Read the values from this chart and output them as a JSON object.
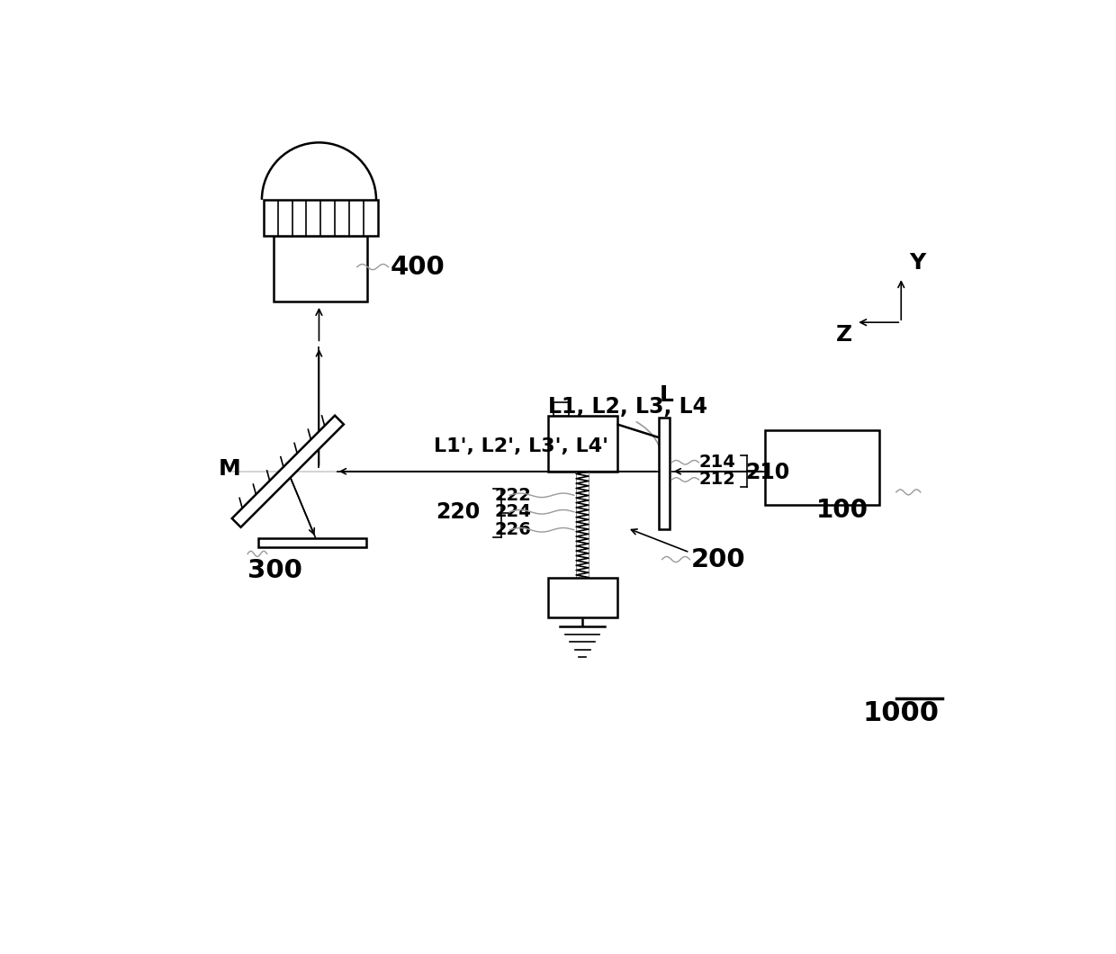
{
  "bg_color": "#ffffff",
  "lc": "#000000",
  "llc": "#999999",
  "label_400": "400",
  "label_100": "100",
  "label_200": "200",
  "label_210": "210",
  "label_212": "212",
  "label_214": "214",
  "label_220": "220",
  "label_222": "222",
  "label_224": "224",
  "label_226": "226",
  "label_300": "300",
  "label_1000": "1000",
  "label_L": "L",
  "label_L1234": "L1, L2, L3, L4",
  "label_L1234p": "L1', L2', L3', L4'",
  "label_M": "M",
  "label_Y": "Y",
  "label_Z": "Z",
  "lw_main": 1.8,
  "lw_thin": 1.2
}
